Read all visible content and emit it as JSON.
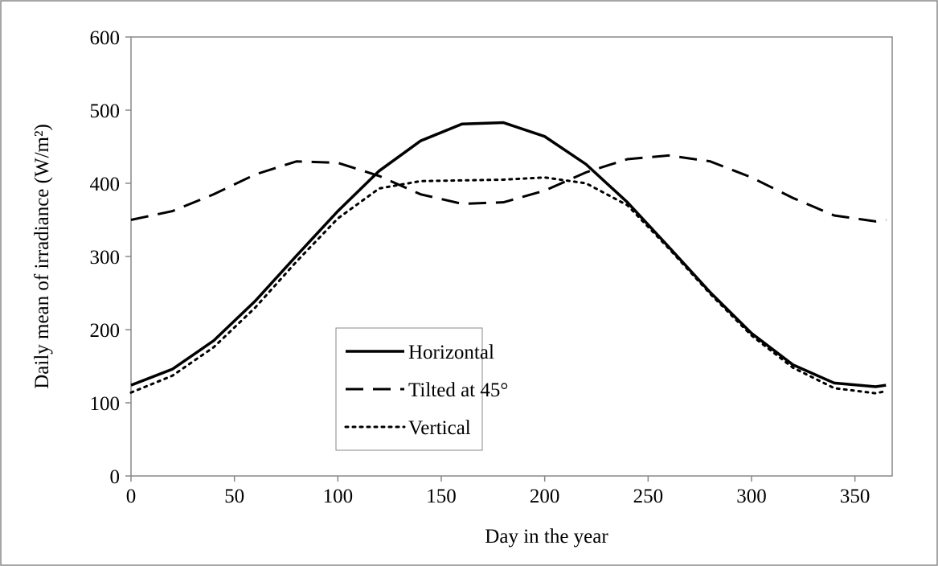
{
  "chart_data": {
    "type": "line",
    "xlabel": "Day in the year",
    "ylabel": "Daily mean of irradiance (W/m²)",
    "x": [
      0,
      20,
      40,
      60,
      80,
      100,
      120,
      140,
      160,
      180,
      200,
      220,
      240,
      260,
      280,
      300,
      320,
      340,
      360,
      365
    ],
    "series": [
      {
        "name": "Horizontal",
        "color": "#000000",
        "linestyle": "solid",
        "values": [
          124,
          146,
          185,
          239,
          301,
          362,
          417,
          458,
          481,
          483,
          464,
          426,
          374,
          313,
          251,
          195,
          152,
          127,
          122,
          124
        ]
      },
      {
        "name": "Tilted at 45°",
        "color": "#000000",
        "linestyle": "dashed",
        "values": [
          350,
          362,
          385,
          412,
          430,
          428,
          410,
          385,
          372,
          374,
          390,
          415,
          433,
          438,
          430,
          408,
          380,
          356,
          348,
          350
        ]
      },
      {
        "name": "Vertical",
        "color": "#000000",
        "linestyle": "dotted",
        "values": [
          114,
          137,
          176,
          230,
          293,
          352,
          393,
          403,
          404,
          405,
          408,
          400,
          370,
          311,
          249,
          192,
          148,
          120,
          113,
          116
        ]
      }
    ],
    "xlim": [
      0,
      368
    ],
    "xticks": [
      0,
      50,
      100,
      150,
      200,
      250,
      300,
      350
    ],
    "ylim": [
      0,
      600
    ],
    "yticks": [
      0,
      100,
      200,
      300,
      400,
      500,
      600
    ]
  }
}
